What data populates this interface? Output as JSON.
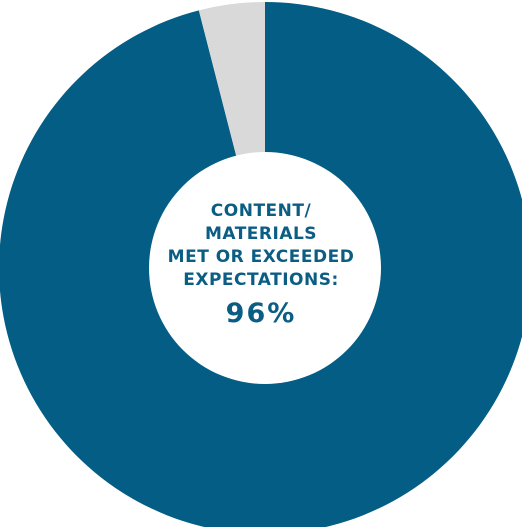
{
  "chart_data": {
    "type": "pie",
    "title": "",
    "center_label_lines": [
      "CONTENT/",
      "MATERIALS",
      "MET OR EXCEEDED",
      "EXPECTATIONS:"
    ],
    "center_value": "96%",
    "slices": [
      {
        "value": 96,
        "color": "#035d84"
      },
      {
        "value": 4,
        "color": "#d9d9d9"
      }
    ],
    "hole_color": "#ffffff"
  }
}
